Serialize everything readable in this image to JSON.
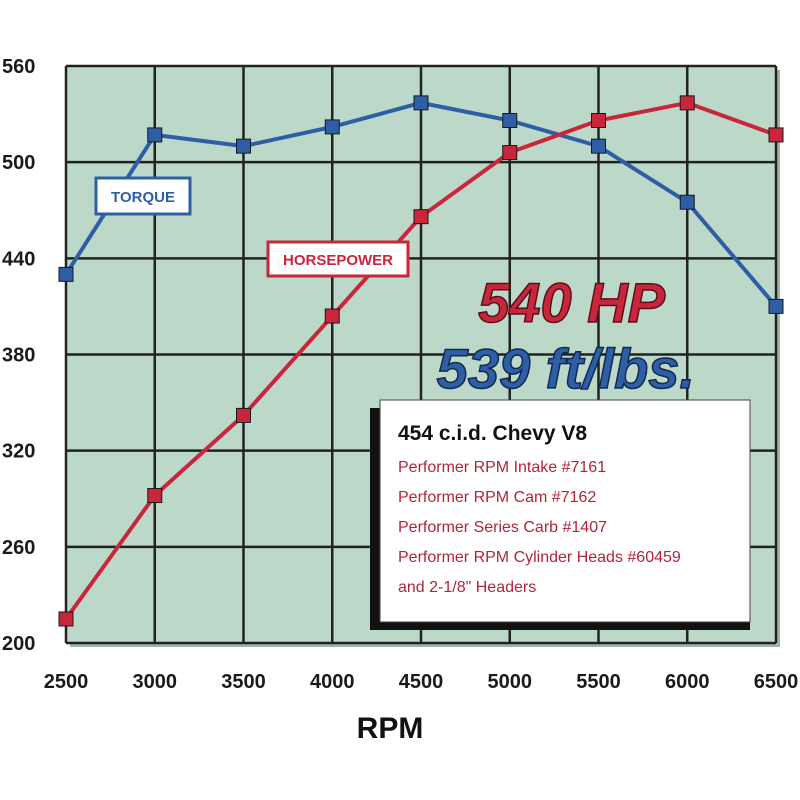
{
  "chart_data": {
    "type": "line",
    "x": [
      2500,
      3000,
      3500,
      4000,
      4500,
      5000,
      5500,
      6000,
      6500
    ],
    "xlabel": "RPM",
    "ylabel": "",
    "xlim": [
      2500,
      6500
    ],
    "ylim": [
      200,
      560
    ],
    "xticks": [
      "2500",
      "3000",
      "3500",
      "4000",
      "4500",
      "5000",
      "5500",
      "6000",
      "6500"
    ],
    "yticks": [
      "200",
      "260",
      "320",
      "380",
      "440",
      "500",
      "560"
    ],
    "grid": true,
    "series": [
      {
        "name": "TORQUE",
        "color": "#2e5fa6",
        "values": [
          430,
          517,
          510,
          522,
          537,
          526,
          510,
          475,
          410
        ]
      },
      {
        "name": "HORSEPOWER",
        "color": "#c9263c",
        "values": [
          215,
          292,
          342,
          404,
          466,
          506,
          526,
          537,
          517
        ]
      }
    ],
    "annotations": {
      "hp_big": "540 HP",
      "torque_big": "539 ft/lbs."
    },
    "info_box": {
      "title": "454 c.i.d. Chevy V8",
      "lines": [
        "Performer RPM Intake #7161",
        "Performer RPM Cam #7162",
        "Performer Series Carb #1407",
        "Performer RPM Cylinder Heads #60459",
        "and 2-1/8\" Headers"
      ]
    },
    "colors": {
      "plot_bg": "#bcd8c8",
      "grid": "#222222",
      "torque": "#2e5fa6",
      "horsepower": "#c9263c"
    }
  }
}
